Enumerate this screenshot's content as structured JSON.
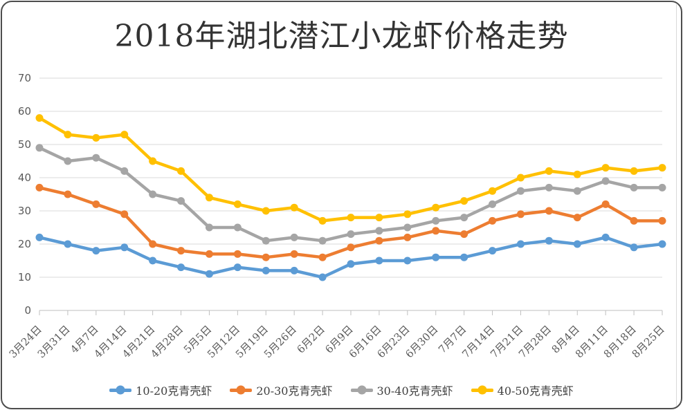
{
  "frame": {
    "border_color": "#4d4d4d",
    "background": "#ffffff"
  },
  "chart_data": {
    "type": "line",
    "title": "2018年湖北潜江小龙虾价格走势",
    "categories": [
      "3月24日",
      "3月31日",
      "4月7日",
      "4月14日",
      "4月21日",
      "4月28日",
      "5月5日",
      "5月12日",
      "5月19日",
      "5月26日",
      "6月2日",
      "6月9日",
      "6月16日",
      "6月23日",
      "6月30日",
      "7月7日",
      "7月14日",
      "7月21日",
      "7月28日",
      "8月4日",
      "8月11日",
      "8月18日",
      "8月25日"
    ],
    "series": [
      {
        "name": "10-20克青壳虾",
        "color": "#5B9BD5",
        "values": [
          22,
          20,
          18,
          19,
          15,
          13,
          11,
          13,
          12,
          12,
          10,
          14,
          15,
          15,
          16,
          16,
          18,
          20,
          21,
          20,
          22,
          19,
          20
        ]
      },
      {
        "name": "20-30克青壳虾",
        "color": "#ED7D31",
        "values": [
          37,
          35,
          32,
          29,
          20,
          18,
          17,
          17,
          16,
          17,
          16,
          19,
          21,
          22,
          24,
          23,
          27,
          29,
          30,
          28,
          32,
          27,
          27
        ]
      },
      {
        "name": "30-40克青壳虾",
        "color": "#A5A5A5",
        "values": [
          49,
          45,
          46,
          42,
          35,
          33,
          25,
          25,
          21,
          22,
          21,
          23,
          24,
          25,
          27,
          28,
          32,
          36,
          37,
          36,
          39,
          37,
          37
        ]
      },
      {
        "name": "40-50克青壳虾",
        "color": "#FFC000",
        "values": [
          58,
          53,
          52,
          53,
          45,
          42,
          34,
          32,
          30,
          31,
          27,
          28,
          28,
          29,
          31,
          33,
          36,
          40,
          42,
          41,
          43,
          42,
          43
        ]
      }
    ],
    "ylim": [
      0,
      70
    ],
    "ytick_step": 10,
    "ytick_labels": [
      "0",
      "10",
      "20",
      "30",
      "40",
      "50",
      "60",
      "70"
    ],
    "grid": "horizontal-on",
    "legend_position": "bottom",
    "colors": {
      "gridline": "#D9D9D9",
      "axis_line": "#BFBFBF",
      "tick_label": "#595959",
      "title_text": "#333333",
      "legend_text": "#404040"
    }
  }
}
